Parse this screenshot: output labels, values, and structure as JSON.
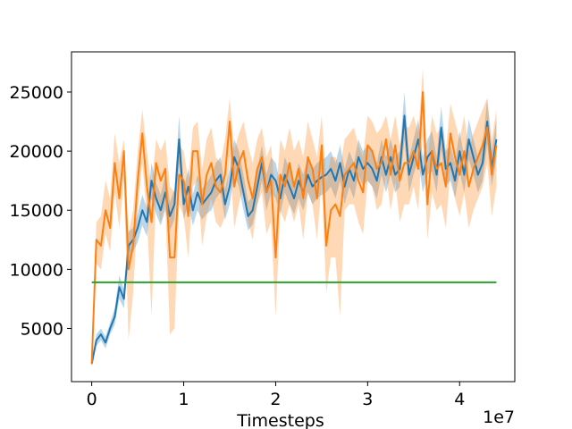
{
  "chart_data": {
    "type": "line",
    "xlabel": "Timesteps",
    "x_offset_label": "1e7",
    "xlim": [
      -0.22,
      4.6
    ],
    "ylim": [
      500,
      28400
    ],
    "xticks": [
      0,
      1,
      2,
      3,
      4
    ],
    "yticks": [
      5000,
      10000,
      15000,
      20000,
      25000
    ],
    "xtick_labels": [
      "0",
      "1",
      "2",
      "3",
      "4"
    ],
    "ytick_labels": [
      "5000",
      "10000",
      "15000",
      "20000",
      "25000"
    ],
    "grid": false,
    "legend": "none",
    "series": [
      {
        "color": "#1f77b4",
        "band_color": "#1f77b4",
        "band_opacity": 0.3,
        "x": [
          0.0,
          0.05,
          0.1,
          0.15,
          0.2,
          0.25,
          0.3,
          0.35,
          0.4,
          0.45,
          0.5,
          0.55,
          0.6,
          0.65,
          0.7,
          0.75,
          0.8,
          0.85,
          0.9,
          0.95,
          1.0,
          1.05,
          1.1,
          1.15,
          1.2,
          1.25,
          1.3,
          1.35,
          1.4,
          1.45,
          1.5,
          1.55,
          1.6,
          1.65,
          1.7,
          1.75,
          1.8,
          1.85,
          1.9,
          1.95,
          2.0,
          2.05,
          2.1,
          2.15,
          2.2,
          2.25,
          2.3,
          2.35,
          2.4,
          2.45,
          2.5,
          2.55,
          2.6,
          2.65,
          2.7,
          2.75,
          2.8,
          2.85,
          2.9,
          2.95,
          3.0,
          3.05,
          3.1,
          3.15,
          3.2,
          3.25,
          3.3,
          3.35,
          3.4,
          3.45,
          3.5,
          3.55,
          3.6,
          3.65,
          3.7,
          3.75,
          3.8,
          3.85,
          3.9,
          3.95,
          4.0,
          4.05,
          4.1,
          4.15,
          4.2,
          4.25,
          4.3,
          4.35,
          4.4
        ],
        "y": [
          2000,
          4000,
          4500,
          3800,
          5000,
          6000,
          8500,
          7500,
          12000,
          12500,
          13500,
          15000,
          14000,
          17500,
          16000,
          15000,
          16500,
          14500,
          15500,
          21000,
          15500,
          17000,
          15000,
          16500,
          15500,
          16000,
          16500,
          17500,
          18000,
          15500,
          17000,
          19500,
          18500,
          16500,
          14500,
          15000,
          17000,
          19000,
          16500,
          18000,
          17500,
          16000,
          18000,
          17000,
          16000,
          17500,
          16500,
          18000,
          17000,
          17500,
          17800,
          18000,
          18500,
          17500,
          19000,
          17000,
          18500,
          17500,
          19500,
          18500,
          19000,
          18500,
          17500,
          19500,
          18000,
          19500,
          18000,
          18500,
          23000,
          18000,
          19500,
          21000,
          18000,
          19500,
          20000,
          18000,
          22000,
          18500,
          19000,
          17500,
          20000,
          18000,
          21000,
          19500,
          18000,
          19000,
          22500,
          18500,
          21000
        ],
        "y_low": [
          1800,
          3500,
          4000,
          3300,
          4500,
          5300,
          7500,
          6700,
          10800,
          11500,
          12300,
          13700,
          12800,
          16000,
          14700,
          13700,
          15000,
          13300,
          14200,
          19000,
          14200,
          15500,
          13700,
          15000,
          14200,
          14700,
          15000,
          16000,
          16500,
          14200,
          15500,
          18000,
          17000,
          15000,
          13300,
          13800,
          15500,
          17500,
          15000,
          16500,
          16000,
          14700,
          16500,
          15500,
          14700,
          16000,
          15000,
          16500,
          15500,
          16000,
          16300,
          16500,
          17000,
          16000,
          17500,
          15500,
          17000,
          16000,
          18000,
          17000,
          17500,
          17000,
          16000,
          18000,
          16500,
          18000,
          16500,
          17000,
          21000,
          16500,
          18000,
          19300,
          16500,
          18000,
          18300,
          16500,
          20200,
          17000,
          17500,
          16000,
          18300,
          16500,
          19300,
          18000,
          16500,
          17500,
          20600,
          17000,
          19300
        ],
        "y_high": [
          2200,
          4500,
          5000,
          4300,
          5500,
          6700,
          9500,
          8300,
          13200,
          13500,
          14700,
          16300,
          15200,
          19000,
          17300,
          16300,
          18000,
          15700,
          16800,
          23000,
          16800,
          18500,
          16300,
          18000,
          16800,
          17300,
          18000,
          19000,
          19500,
          16800,
          18500,
          21000,
          20000,
          18000,
          15700,
          16200,
          18500,
          20500,
          18000,
          19500,
          19000,
          17300,
          19500,
          18500,
          17300,
          19000,
          18000,
          19500,
          18500,
          19000,
          19300,
          19500,
          20000,
          19000,
          20500,
          18500,
          20000,
          19000,
          21000,
          20000,
          20500,
          20000,
          19000,
          21000,
          19500,
          21000,
          19500,
          20000,
          25000,
          19500,
          21000,
          22700,
          19500,
          21000,
          21700,
          19500,
          23800,
          20000,
          20500,
          19000,
          21700,
          19500,
          22700,
          21000,
          19500,
          20500,
          24400,
          20000,
          22700
        ]
      },
      {
        "color": "#ff7f0e",
        "band_color": "#ff7f0e",
        "band_opacity": 0.3,
        "x": [
          0.0,
          0.05,
          0.1,
          0.15,
          0.2,
          0.25,
          0.3,
          0.35,
          0.4,
          0.45,
          0.5,
          0.55,
          0.6,
          0.65,
          0.7,
          0.75,
          0.8,
          0.85,
          0.9,
          0.95,
          1.0,
          1.05,
          1.1,
          1.15,
          1.2,
          1.25,
          1.3,
          1.35,
          1.4,
          1.45,
          1.5,
          1.55,
          1.6,
          1.65,
          1.7,
          1.75,
          1.8,
          1.85,
          1.9,
          1.95,
          2.0,
          2.05,
          2.1,
          2.15,
          2.2,
          2.25,
          2.3,
          2.35,
          2.4,
          2.45,
          2.5,
          2.55,
          2.6,
          2.65,
          2.7,
          2.75,
          2.8,
          2.85,
          2.9,
          2.95,
          3.0,
          3.05,
          3.1,
          3.15,
          3.2,
          3.25,
          3.3,
          3.35,
          3.4,
          3.45,
          3.5,
          3.55,
          3.6,
          3.65,
          3.7,
          3.75,
          3.8,
          3.85,
          3.9,
          3.95,
          4.0,
          4.05,
          4.1,
          4.15,
          4.2,
          4.25,
          4.3,
          4.35,
          4.4
        ],
        "y": [
          2000,
          12500,
          12000,
          15000,
          13500,
          19000,
          16000,
          20000,
          10000,
          12000,
          17500,
          21500,
          17000,
          14000,
          19000,
          17500,
          18500,
          11000,
          11000,
          18000,
          17500,
          14500,
          20000,
          20000,
          15500,
          18000,
          19000,
          17000,
          16500,
          18000,
          22500,
          17000,
          19000,
          20000,
          17500,
          16000,
          18500,
          19500,
          16500,
          17500,
          11000,
          18000,
          17000,
          19000,
          17000,
          18500,
          16000,
          19500,
          18500,
          16000,
          20500,
          12000,
          15000,
          15500,
          14500,
          18000,
          18500,
          19000,
          17500,
          16500,
          20500,
          20000,
          18500,
          19000,
          21000,
          18000,
          20500,
          17500,
          19000,
          19000,
          20000,
          18500,
          25000,
          15500,
          20000,
          18500,
          19000,
          17000,
          21500,
          19500,
          18000,
          20000,
          17000,
          18500,
          19500,
          20500,
          22000,
          18000,
          20500
        ],
        "y_low": [
          1800,
          10500,
          10000,
          13000,
          11500,
          16500,
          13500,
          17500,
          4000,
          8000,
          15000,
          19000,
          14500,
          6000,
          16500,
          14000,
          15500,
          4500,
          5000,
          15500,
          14500,
          11000,
          17000,
          17500,
          12000,
          14500,
          16000,
          14000,
          13500,
          14500,
          19500,
          13500,
          15500,
          17000,
          14000,
          12500,
          15500,
          16500,
          13000,
          14000,
          6000,
          15000,
          14000,
          15500,
          14000,
          15500,
          12500,
          16500,
          15500,
          12500,
          17500,
          8000,
          11000,
          11000,
          6000,
          15000,
          15500,
          15500,
          14000,
          13000,
          17500,
          17000,
          15000,
          15500,
          18000,
          15000,
          17500,
          14000,
          15500,
          15500,
          17000,
          15000,
          21500,
          12500,
          16500,
          15000,
          15500,
          13500,
          18500,
          16000,
          14500,
          16500,
          13500,
          15000,
          16000,
          17000,
          19000,
          14500,
          17000
        ],
        "y_high": [
          2200,
          14000,
          14500,
          17500,
          16000,
          21500,
          19000,
          21000,
          13000,
          15000,
          20000,
          23500,
          20000,
          17000,
          21000,
          20000,
          21000,
          17000,
          16500,
          20500,
          20000,
          17500,
          22000,
          22500,
          18500,
          21000,
          22000,
          19500,
          19000,
          21000,
          24500,
          20000,
          21500,
          22500,
          20500,
          19000,
          21000,
          22000,
          19500,
          20500,
          16000,
          21000,
          20000,
          22000,
          20000,
          21000,
          19500,
          22500,
          21000,
          19500,
          23000,
          17500,
          19500,
          19500,
          18500,
          21000,
          21500,
          22000,
          20500,
          19500,
          23000,
          22500,
          21500,
          22000,
          23000,
          21000,
          23000,
          20500,
          22000,
          22000,
          23000,
          21500,
          27000,
          19000,
          23000,
          21500,
          22000,
          20000,
          24000,
          22500,
          21000,
          23000,
          20000,
          21500,
          22500,
          23500,
          24500,
          21000,
          23500
        ]
      },
      {
        "color": "#2ca02c",
        "x": [
          0.0,
          4.4
        ],
        "y": [
          8900,
          8900
        ]
      }
    ]
  }
}
